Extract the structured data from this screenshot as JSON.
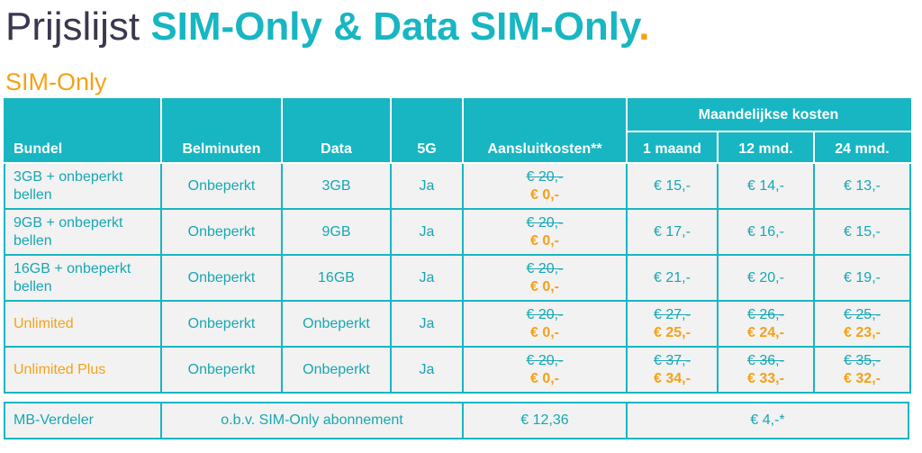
{
  "title": {
    "normal": "Prijslijst ",
    "brand": "SIM-Only & Data SIM-Only",
    "dot": "."
  },
  "section_title": "SIM-Only",
  "table": {
    "group_header": "Maandelijkse kosten",
    "columns": [
      "Bundel",
      "Belminuten",
      "Data",
      "5G",
      "Aansluitkosten**",
      "1 maand",
      "12 mnd.",
      "24 mnd."
    ],
    "rows": [
      {
        "bundel": "3GB + onbeperkt bellen",
        "belminuten": "Onbeperkt",
        "data": "3GB",
        "5g": "Ja",
        "aansluit_old": "€ 20,-",
        "aansluit_new": "€ 0,-",
        "m1": "€ 15,-",
        "m12": "€ 14,-",
        "m24": "€ 13,-"
      },
      {
        "bundel": "9GB + onbeperkt bellen",
        "belminuten": "Onbeperkt",
        "data": "9GB",
        "5g": "Ja",
        "aansluit_old": "€ 20,-",
        "aansluit_new": "€ 0,-",
        "m1": "€ 17,-",
        "m12": "€ 16,-",
        "m24": "€ 15,-"
      },
      {
        "bundel": "16GB + onbeperkt bellen",
        "belminuten": "Onbeperkt",
        "data": "16GB",
        "5g": "Ja",
        "aansluit_old": "€ 20,-",
        "aansluit_new": "€ 0,-",
        "m1": "€ 21,-",
        "m12": "€ 20,-",
        "m24": "€ 19,-"
      },
      {
        "bundel": "Unlimited",
        "belminuten": "Onbeperkt",
        "data": "Onbeperkt",
        "5g": "Ja",
        "aansluit_old": "€ 20,-",
        "aansluit_new": "€ 0,-",
        "m1_old": "€ 27,-",
        "m1_new": "€ 25,-",
        "m12_old": "€ 26,-",
        "m12_new": "€ 24,-",
        "m24_old": "€ 25,-",
        "m24_new": "€ 23,-"
      },
      {
        "bundel": "Unlimited Plus",
        "belminuten": "Onbeperkt",
        "data": "Onbeperkt",
        "5g": "Ja",
        "aansluit_old": "€ 20,-",
        "aansluit_new": "€ 0,-",
        "m1_old": "€ 37,-",
        "m1_new": "€ 34,-",
        "m12_old": "€ 36,-",
        "m12_new": "€ 33,-",
        "m24_old": "€ 35,-",
        "m24_new": "€ 32,-"
      }
    ]
  },
  "mb_verdeler": {
    "name": "MB-Verdeler",
    "description": "o.b.v. SIM-Only abonnement",
    "aansluit": "€ 12,36",
    "monthly": "€ 4,-*"
  },
  "colors": {
    "brand": "#17b6c2",
    "accent": "#f5a117",
    "title_dark": "#3d3650",
    "row_bg": "#f2f2f2"
  }
}
